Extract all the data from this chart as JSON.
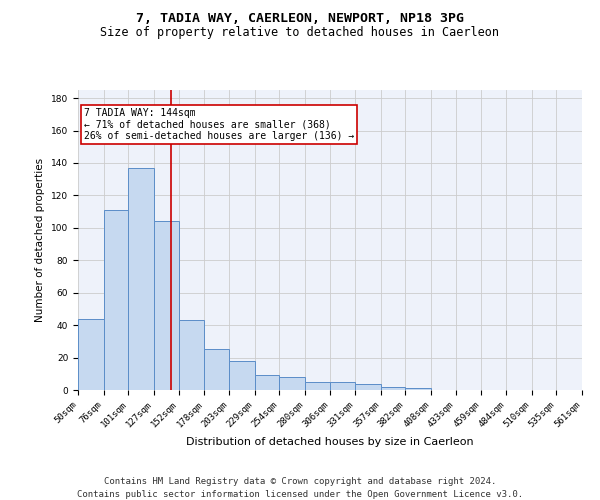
{
  "title": "7, TADIA WAY, CAERLEON, NEWPORT, NP18 3PG",
  "subtitle": "Size of property relative to detached houses in Caerleon",
  "xlabel": "Distribution of detached houses by size in Caerleon",
  "ylabel": "Number of detached properties",
  "bin_edges": [
    50,
    76,
    101,
    127,
    152,
    178,
    203,
    229,
    254,
    280,
    306,
    331,
    357,
    382,
    408,
    433,
    459,
    484,
    510,
    535,
    561
  ],
  "bar_heights": [
    44,
    111,
    137,
    104,
    43,
    25,
    18,
    9,
    8,
    5,
    5,
    4,
    2,
    1,
    0,
    0,
    0,
    0,
    0,
    0
  ],
  "bar_color": "#c6d9f0",
  "bar_edge_color": "#5b8dc8",
  "property_size": 144,
  "vline_color": "#cc0000",
  "annotation_line1": "7 TADIA WAY: 144sqm",
  "annotation_line2": "← 71% of detached houses are smaller (368)",
  "annotation_line3": "26% of semi-detached houses are larger (136) →",
  "annotation_box_color": "#ffffff",
  "annotation_box_edge_color": "#cc0000",
  "ylim": [
    0,
    185
  ],
  "yticks": [
    0,
    20,
    40,
    60,
    80,
    100,
    120,
    140,
    160,
    180
  ],
  "grid_color": "#cccccc",
  "background_color": "#eef2fa",
  "footer_line1": "Contains HM Land Registry data © Crown copyright and database right 2024.",
  "footer_line2": "Contains public sector information licensed under the Open Government Licence v3.0.",
  "title_fontsize": 9.5,
  "subtitle_fontsize": 8.5,
  "xlabel_fontsize": 8,
  "ylabel_fontsize": 7.5,
  "tick_fontsize": 6.5,
  "annotation_fontsize": 7,
  "footer_fontsize": 6.5
}
